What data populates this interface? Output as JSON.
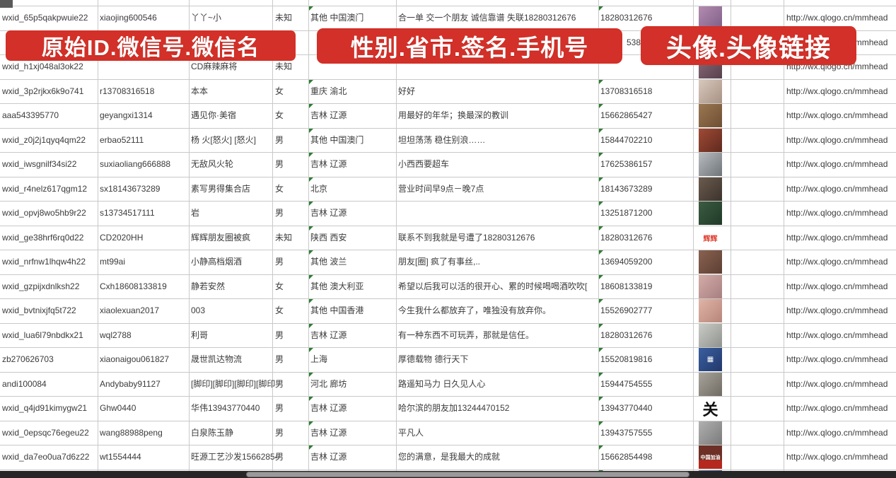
{
  "banners": [
    {
      "text": "原始ID.微信号.微信名"
    },
    {
      "text": "性别.省市.签名.手机号"
    },
    {
      "text": "头像.头像链接"
    }
  ],
  "banner_color": "#d23028",
  "grid_color": "#c9c9c9",
  "link_color": "#41667e",
  "columns": [
    "original-id",
    "wechat-id",
    "wechat-name",
    "gender",
    "region",
    "signature",
    "phone",
    "avatar",
    "avatar-link"
  ],
  "rows": [
    {
      "id": "wxid_65p5qakpwuie22",
      "wxid": "xiaojing600546",
      "name": "丫丫~小",
      "gender": "未知",
      "region": "其他 中国澳门",
      "signature": "合一单 交一个朋友 诚信靠谱 失联18280312676",
      "phone": "18280312676",
      "link": "http://wx.qlogo.cn/mmhead",
      "avatar": {
        "icon": "avatar-photo",
        "bg": "linear-gradient(135deg,#b48bb0,#7d5f86)",
        "label": "",
        "label_color": ""
      }
    },
    {
      "id": "",
      "wxid": "",
      "name": "",
      "gender": "",
      "region": "",
      "signature": "",
      "phone": "5386",
      "phone_fragment": true,
      "link": "http://wx.qlogo.cn/mmhead",
      "avatar": {
        "icon": "avatar-photo",
        "bg": "#d9d9d9",
        "label": "",
        "label_color": ""
      }
    },
    {
      "id": "wxid_h1xj048al3ok22",
      "wxid": "",
      "name": "CD麻辣麻将",
      "gender": "未知",
      "region": "",
      "signature": "",
      "phone": "",
      "link": "http://wx.qlogo.cn/mmhead",
      "avatar": {
        "icon": "avatar-photo",
        "bg": "linear-gradient(135deg,#8a6a78,#57404c)",
        "label": "",
        "label_color": ""
      }
    },
    {
      "id": "wxid_3p2rjkx6k9o741",
      "wxid": "r13708316518",
      "name": "本本",
      "gender": "女",
      "region": "重庆 渝北",
      "signature": "好好",
      "phone": "13708316518",
      "link": "http://wx.qlogo.cn/mmhead",
      "avatar": {
        "icon": "avatar-photo",
        "bg": "linear-gradient(135deg,#d8c8bd,#a89284)",
        "label": "",
        "label_color": ""
      }
    },
    {
      "id": "aaa543395770",
      "wxid": "geyangxi1314",
      "name": "遇见你·美宿",
      "gender": "女",
      "region": "吉林 辽源",
      "signature": "用最好的年华；换最深的教训",
      "phone": "15662865427",
      "link": "http://wx.qlogo.cn/mmhead",
      "avatar": {
        "icon": "avatar-photo",
        "bg": "linear-gradient(135deg,#9b7752,#6e4f33)",
        "label": "",
        "label_color": ""
      }
    },
    {
      "id": "wxid_z0j2j1qyq4qm22",
      "wxid": "erbao52111",
      "name": "杨 火[怒火] [怒火]",
      "gender": "男",
      "region": "其他 中国澳门",
      "signature": "坦坦荡荡 稳住别浪……",
      "phone": "15844702210",
      "link": "http://wx.qlogo.cn/mmhead",
      "avatar": {
        "icon": "avatar-photo",
        "bg": "linear-gradient(135deg,#a04a35,#5f2a1e)",
        "label": "",
        "label_color": ""
      }
    },
    {
      "id": "wxid_iwsgnilf34si22",
      "wxid": "suxiaoliang666888",
      "name": "无敌风火轮",
      "gender": "男",
      "region": "吉林 辽源",
      "signature": "小西西要超车",
      "phone": "17625386157",
      "link": "http://wx.qlogo.cn/mmhead",
      "avatar": {
        "icon": "avatar-photo",
        "bg": "linear-gradient(135deg,#b8bcc0,#6f7478)",
        "label": "",
        "label_color": ""
      }
    },
    {
      "id": "wxid_r4nelz617qgm12",
      "wxid": "sx18143673289",
      "name": "素写男得集合店",
      "gender": "女",
      "region": "北京",
      "signature": "营业时间早9点－晚7点",
      "phone": "18143673289",
      "link": "http://wx.qlogo.cn/mmhead",
      "avatar": {
        "icon": "avatar-photo",
        "bg": "linear-gradient(135deg,#6b5b4e,#3c332c)",
        "label": "",
        "label_color": ""
      }
    },
    {
      "id": "wxid_opvj8wo5hb9r22",
      "wxid": "s13734517111",
      "name": "岩",
      "gender": "男",
      "region": "吉林 辽源",
      "signature": "",
      "phone": "13251871200",
      "link": "http://wx.qlogo.cn/mmhead",
      "avatar": {
        "icon": "avatar-photo",
        "bg": "linear-gradient(135deg,#3c5c42,#1f3a28)",
        "label": "",
        "label_color": ""
      }
    },
    {
      "id": "wxid_ge38hrf6rq0d22",
      "wxid": "CD2020HH",
      "name": "辉辉朋友圈被疯",
      "gender": "未知",
      "region": "陕西 西安",
      "signature": "联系不到我就是号遭了18280312676",
      "phone": "18280312676",
      "link": "http://wx.qlogo.cn/mmhead",
      "avatar": {
        "icon": "avatar-text",
        "bg": "#ffffff",
        "label": "辉辉",
        "label_color": "#e03c2d"
      }
    },
    {
      "id": "wxid_nrfnw1lhqw4h22",
      "wxid": "mt99ai",
      "name": "小静高档烟酒",
      "gender": "男",
      "region": "其他 波兰",
      "signature": "朋友[圈] 疯了有事丝,..",
      "phone": "13694059200",
      "link": "http://wx.qlogo.cn/mmhead",
      "avatar": {
        "icon": "avatar-photo",
        "bg": "linear-gradient(135deg,#8a6251,#5c3f33)",
        "label": "",
        "label_color": ""
      }
    },
    {
      "id": "wxid_gzpijxdnlksh22",
      "wxid": "Cxh18608133819",
      "name": "静若安然",
      "gender": "女",
      "region": "其他 澳大利亚",
      "signature": "希望以后我可以活的很开心、累的时候喝喝酒吹吹[",
      "phone": "18608133819",
      "link": "http://wx.qlogo.cn/mmhead",
      "avatar": {
        "icon": "avatar-photo",
        "bg": "linear-gradient(135deg,#d4aca6,#a67f82)",
        "label": "",
        "label_color": ""
      }
    },
    {
      "id": "wxid_bvtnixjfq5t722",
      "wxid": "xiaolexuan2017",
      "name": "003",
      "gender": "女",
      "region": "其他 中国香港",
      "signature": "今生我什么都放弃了，唯独没有放弃你。",
      "phone": "15526902777",
      "link": "http://wx.qlogo.cn/mmhead",
      "avatar": {
        "icon": "avatar-photo",
        "bg": "linear-gradient(135deg,#e0b4a8,#b78579)",
        "label": "",
        "label_color": ""
      }
    },
    {
      "id": "wxid_lua6l79nbdkx21",
      "wxid": "wql2788",
      "name": "利哥",
      "gender": "男",
      "region": "吉林 辽源",
      "signature": "有一种东西不可玩弄，那就是信任。",
      "phone": "18280312676",
      "link": "http://wx.qlogo.cn/mmhead",
      "avatar": {
        "icon": "avatar-photo",
        "bg": "linear-gradient(135deg,#c9cbc6,#8f938e)",
        "label": "",
        "label_color": ""
      }
    },
    {
      "id": "zb270626703",
      "wxid": "xiaonaigou061827",
      "name": "晟世凯达物流",
      "gender": "男",
      "region": "上海",
      "signature": "厚德载物 德行天下",
      "phone": "15520819816",
      "link": "http://wx.qlogo.cn/mmhead",
      "avatar": {
        "icon": "avatar-qrcode",
        "bg": "linear-gradient(135deg,#3a5fa0,#22386b)",
        "label": "▦",
        "label_color": "#ffffff"
      }
    },
    {
      "id": "andi100084",
      "wxid": "Andybaby91127",
      "name": "[脚印][脚印][脚印][脚印",
      "gender": "男",
      "region": "河北 廊坊",
      "signature": "路遥知马力 日久见人心",
      "phone": "15944754555",
      "link": "http://wx.qlogo.cn/mmhead",
      "avatar": {
        "icon": "avatar-photo",
        "bg": "linear-gradient(135deg,#a8a49c,#6f6b63)",
        "label": "",
        "label_color": ""
      }
    },
    {
      "id": "wxid_q4jd91kimygw21",
      "wxid": "Ghw0440",
      "name": "华伟13943770440",
      "gender": "男",
      "region": "吉林 辽源",
      "signature": "哈尔滨的朋友加13244470152",
      "phone": "13943770440",
      "link": "http://wx.qlogo.cn/mmhead",
      "avatar": {
        "icon": "avatar-calligraphy",
        "bg": "#ffffff",
        "label": "关",
        "label_color": "#111111"
      }
    },
    {
      "id": "wxid_0epsqc76egeu22",
      "wxid": "wang88988peng",
      "name": "白泉陈玉静",
      "gender": "男",
      "region": "吉林 辽源",
      "signature": "平凡人",
      "phone": "13943757555",
      "link": "http://wx.qlogo.cn/mmhead",
      "avatar": {
        "icon": "avatar-photo",
        "bg": "linear-gradient(135deg,#b0b0b0,#7a7a7a)",
        "label": "",
        "label_color": ""
      }
    },
    {
      "id": "wxid_da7eo0ua7d6z22",
      "wxid": "wt1554444",
      "name": "旺源工艺沙发15662854",
      "gender": "男",
      "region": "吉林 辽源",
      "signature": "您的满意，是我最大的成就",
      "phone": "15662854498",
      "link": "http://wx.qlogo.cn/mmhead",
      "avatar": {
        "icon": "avatar-photo",
        "bg": "linear-gradient(180deg,#6e3026 62%,#b5281e 62%)",
        "label": "中国加油",
        "label_color": "#ffffff"
      }
    }
  ],
  "partial_bottom_row": {
    "avatar": {
      "icon": "avatar-photo",
      "bg": "linear-gradient(135deg,#7a8fb5,#4c6392)"
    }
  },
  "scrollbar": {
    "orientation": "horizontal"
  }
}
